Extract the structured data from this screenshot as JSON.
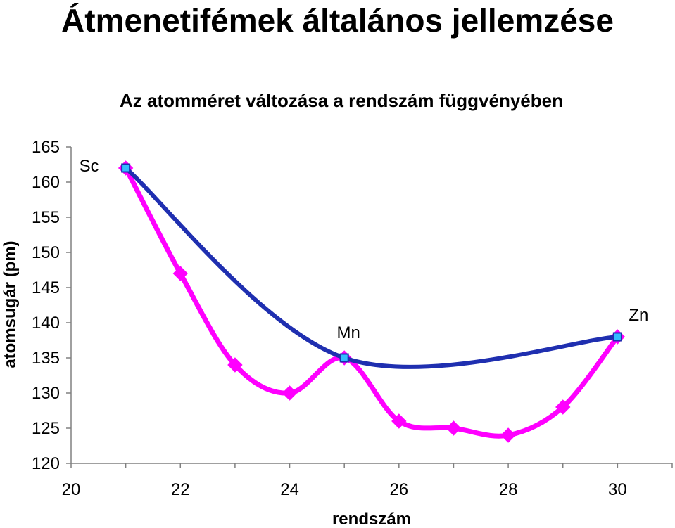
{
  "page_title": "Átmenetifémek általános jellemzése",
  "chart_data": {
    "type": "line",
    "title": "Az atomméret változása a rendszám függvényében",
    "xlabel": "rendszám",
    "ylabel": "atomsugár (pm)",
    "xlim": [
      20,
      31
    ],
    "ylim": [
      120,
      165
    ],
    "xticks": [
      20,
      22,
      24,
      26,
      28,
      30
    ],
    "yticks": [
      120,
      125,
      130,
      135,
      140,
      145,
      150,
      155,
      160,
      165
    ],
    "grid": false,
    "colors": {
      "magenta": "#ff00ff",
      "blue": "#1f2fb0",
      "marker_fill": "#33bbff"
    },
    "series": [
      {
        "x": [
          21,
          22,
          23,
          24,
          25,
          26,
          27,
          28,
          29,
          30
        ],
        "values": [
          162,
          147,
          134,
          130,
          135,
          126,
          125,
          124,
          128,
          138
        ],
        "marker": "diamond"
      },
      {
        "x": [
          21,
          25,
          30
        ],
        "values": [
          162,
          135,
          138
        ],
        "marker": "square"
      }
    ],
    "annotations": [
      {
        "text": "Sc",
        "x": 21,
        "y": 162
      },
      {
        "text": "Mn",
        "x": 25,
        "y": 135
      },
      {
        "text": "Zn",
        "x": 30,
        "y": 138
      }
    ]
  }
}
